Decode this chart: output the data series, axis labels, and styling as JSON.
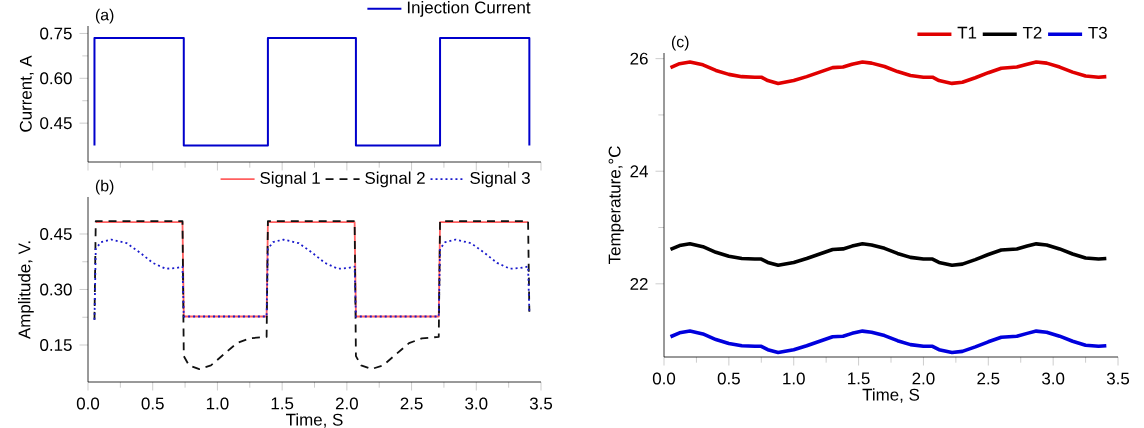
{
  "chart_data": [
    {
      "type": "line",
      "ylabel": "Current, A",
      "annotations": [
        "(a)"
      ],
      "legend": "top right",
      "tick_labels": "y",
      "xlim": [
        0,
        3.5
      ],
      "ylim": [
        0.32,
        0.775
      ],
      "xticks": [
        0,
        0.5,
        1,
        1.5,
        2,
        2.5,
        3,
        3.5
      ],
      "yticks": [
        0.45,
        {
          "value": 0.6,
          "label": "0.60"
        },
        0.75
      ],
      "series": [
        {
          "name": "Injection Current",
          "color": "#0000cc",
          "x": [
            0.05,
            0.05,
            0.74,
            0.74,
            1.39,
            1.39,
            2.07,
            2.07,
            2.72,
            2.72,
            3.41,
            3.41
          ],
          "values": [
            0.375,
            0.735,
            0.735,
            0.375,
            0.375,
            0.735,
            0.735,
            0.375,
            0.375,
            0.735,
            0.735,
            0.375
          ]
        }
      ]
    },
    {
      "type": "line",
      "xlabel": "Time, S",
      "ylabel": "Amplitude, V.",
      "annotations": [
        "(b)"
      ],
      "legend": "top right",
      "xlim": [
        0,
        3.5
      ],
      "ylim": [
        0.05,
        0.55
      ],
      "xticks": [
        {
          "value": 0,
          "label": "0.0"
        },
        0.5,
        {
          "value": 1,
          "label": "1.0"
        },
        1.5,
        {
          "value": 2,
          "label": "2.0"
        },
        2.5,
        {
          "value": 3,
          "label": "3.0"
        },
        3.5
      ],
      "yticks": [
        0.15,
        {
          "value": 0.3,
          "label": "0.30"
        },
        0.45
      ],
      "series": [
        {
          "name": "Signal 1",
          "color": "#ff5f5f",
          "line_style": "solid",
          "x": [
            0.06,
            0.73,
            0.74,
            1.38,
            1.39,
            2.06,
            2.07,
            2.71,
            2.72,
            3.4
          ],
          "values": [
            0.482,
            0.482,
            0.227,
            0.227,
            0.482,
            0.482,
            0.227,
            0.227,
            0.482,
            0.482
          ]
        },
        {
          "name": "Signal 2",
          "color": "#111111",
          "line_style": "dashed",
          "x": [
            0.05,
            0.06,
            0.73,
            0.74,
            0.78,
            0.86,
            0.95,
            1.05,
            1.15,
            1.25,
            1.38,
            1.39,
            2.06,
            2.07,
            2.11,
            2.19,
            2.28,
            2.38,
            2.48,
            2.58,
            2.71,
            2.72,
            3.4,
            3.41
          ],
          "values": [
            0.218,
            0.485,
            0.485,
            0.12,
            0.095,
            0.085,
            0.095,
            0.125,
            0.155,
            0.168,
            0.172,
            0.485,
            0.485,
            0.12,
            0.095,
            0.085,
            0.095,
            0.125,
            0.155,
            0.168,
            0.172,
            0.485,
            0.485,
            0.24
          ]
        },
        {
          "name": "Signal 3",
          "color": "#1a1acc",
          "line_style": "dotted",
          "x": [
            0.05,
            0.06,
            0.1,
            0.18,
            0.3,
            0.4,
            0.5,
            0.6,
            0.68,
            0.73,
            0.74,
            1.38,
            1.39,
            1.43,
            1.51,
            1.63,
            1.73,
            1.83,
            1.93,
            2.01,
            2.06,
            2.07,
            2.71,
            2.72,
            2.76,
            2.84,
            2.96,
            3.06,
            3.16,
            3.26,
            3.34,
            3.4,
            3.41
          ],
          "values": [
            0.218,
            0.41,
            0.428,
            0.435,
            0.425,
            0.4,
            0.372,
            0.356,
            0.358,
            0.362,
            0.227,
            0.227,
            0.41,
            0.428,
            0.435,
            0.425,
            0.4,
            0.372,
            0.356,
            0.358,
            0.362,
            0.227,
            0.227,
            0.41,
            0.428,
            0.435,
            0.425,
            0.4,
            0.372,
            0.356,
            0.358,
            0.362,
            0.24
          ]
        }
      ]
    },
    {
      "type": "line",
      "xlabel": "Time, S",
      "ylabel": "Temperature,°C",
      "annotations": [
        "(c)"
      ],
      "legend": "top right",
      "xlim": [
        0,
        3.5
      ],
      "ylim": [
        20.7,
        26.1
      ],
      "xticks": [
        {
          "value": 0,
          "label": "0.0"
        },
        0.5,
        {
          "value": 1,
          "label": "1.0"
        },
        1.5,
        {
          "value": 2,
          "label": "2.0"
        },
        2.5,
        {
          "value": 3,
          "label": "3.0"
        },
        3.5
      ],
      "yticks": [
        22,
        24,
        26
      ],
      "x": [
        0.05,
        0.12,
        0.2,
        0.3,
        0.4,
        0.5,
        0.6,
        0.7,
        0.75,
        0.8,
        0.88,
        1.0,
        1.1,
        1.2,
        1.3,
        1.38,
        1.45,
        1.53,
        1.6,
        1.7,
        1.8,
        1.9,
        2.0,
        2.07,
        2.12,
        2.22,
        2.3,
        2.4,
        2.5,
        2.6,
        2.72,
        2.8,
        2.87,
        2.95,
        3.05,
        3.15,
        3.25,
        3.35,
        3.41
      ],
      "series": [
        {
          "name": "T1",
          "color": "#e00000",
          "values": [
            25.84,
            25.91,
            25.94,
            25.89,
            25.79,
            25.72,
            25.68,
            25.67,
            25.67,
            25.61,
            25.56,
            25.61,
            25.68,
            25.76,
            25.84,
            25.85,
            25.9,
            25.94,
            25.92,
            25.86,
            25.77,
            25.7,
            25.67,
            25.67,
            25.61,
            25.56,
            25.58,
            25.66,
            25.75,
            25.83,
            25.85,
            25.9,
            25.94,
            25.92,
            25.85,
            25.76,
            25.69,
            25.67,
            25.68
          ]
        },
        {
          "name": "T2",
          "color": "#000000",
          "values": [
            22.61,
            22.68,
            22.71,
            22.66,
            22.56,
            22.49,
            22.45,
            22.44,
            22.44,
            22.38,
            22.33,
            22.38,
            22.45,
            22.53,
            22.61,
            22.62,
            22.67,
            22.71,
            22.69,
            22.63,
            22.54,
            22.47,
            22.44,
            22.44,
            22.38,
            22.33,
            22.35,
            22.43,
            22.52,
            22.6,
            22.62,
            22.67,
            22.71,
            22.69,
            22.62,
            22.53,
            22.46,
            22.44,
            22.45
          ]
        },
        {
          "name": "T3",
          "color": "#0000dd",
          "values": [
            21.06,
            21.13,
            21.16,
            21.11,
            21.01,
            20.94,
            20.9,
            20.89,
            20.89,
            20.83,
            20.78,
            20.83,
            20.9,
            20.98,
            21.06,
            21.07,
            21.12,
            21.16,
            21.14,
            21.08,
            20.99,
            20.92,
            20.89,
            20.89,
            20.83,
            20.78,
            20.8,
            20.88,
            20.97,
            21.05,
            21.07,
            21.12,
            21.16,
            21.14,
            21.07,
            20.98,
            20.91,
            20.89,
            20.9
          ]
        }
      ]
    }
  ]
}
